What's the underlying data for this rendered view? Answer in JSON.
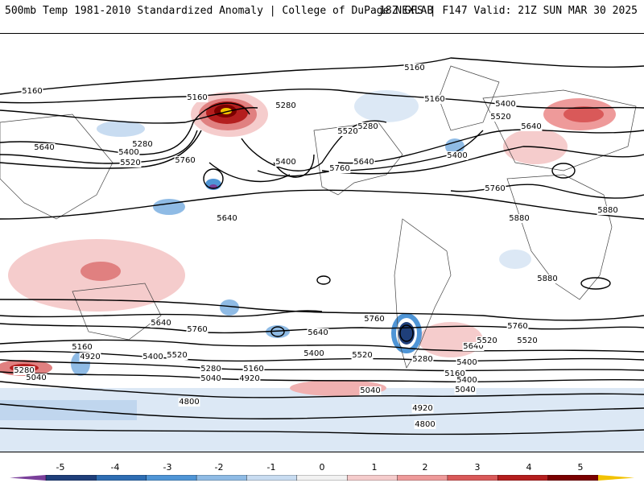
{
  "header": {
    "title_left": "500mb Temp 1981-2010 Standardized Anomaly | College of DuPage NEXLAB",
    "title_right": "18Z GFS | F147 Valid: 21Z SUN MAR 30 2025"
  },
  "contour_labels": [
    "5160",
    "5160",
    "5160",
    "5160",
    "5280",
    "5280",
    "5280",
    "5400",
    "5400",
    "5400",
    "5400",
    "5520",
    "5520",
    "5520",
    "5640",
    "5640",
    "5640",
    "5760",
    "5760",
    "5760",
    "5880",
    "5880",
    "5880",
    "5640",
    "5760",
    "5640",
    "5760",
    "5760",
    "5640",
    "5520",
    "5400",
    "5520",
    "5520",
    "5400",
    "5280",
    "5280",
    "5160",
    "5160",
    "5040",
    "5040",
    "5040",
    "5040",
    "4920",
    "4920",
    "4920",
    "4800",
    "4800",
    "5400",
    "5280",
    "5160",
    "5640",
    "5520",
    "5400"
  ],
  "colorbar": {
    "ticks": [
      "-5",
      "-4",
      "-3",
      "-2",
      "-1",
      "0",
      "1",
      "2",
      "3",
      "4",
      "5"
    ],
    "colors": [
      "#7a3f9a",
      "#1f3f7a",
      "#2e6db3",
      "#4f95d6",
      "#8fbbe5",
      "#c8dcf1",
      "#f2f2f2",
      "#f5cccc",
      "#ee9a9a",
      "#d95959",
      "#b41e1e",
      "#7a0000",
      "#f2c200"
    ]
  }
}
